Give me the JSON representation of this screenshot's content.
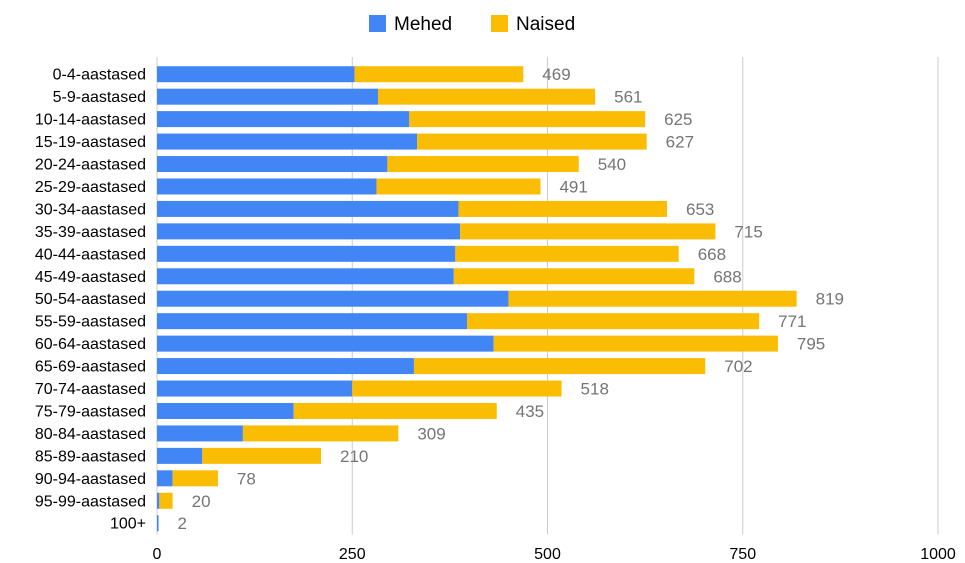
{
  "chart_data": {
    "type": "bar",
    "orientation": "horizontal",
    "stacked": true,
    "categories": [
      "0-4-aastased",
      "5-9-aastased",
      "10-14-aastased",
      "15-19-aastased",
      "20-24-aastased",
      "25-29-aastased",
      "30-34-aastased",
      "35-39-aastased",
      "40-44-aastased",
      "45-49-aastased",
      "50-54-aastased",
      "55-59-aastased",
      "60-64-aastased",
      "65-69-aastased",
      "70-74-aastased",
      "75-79-aastased",
      "80-84-aastased",
      "85-89-aastased",
      "90-94-aastased",
      "95-99-aastased",
      "100+"
    ],
    "series": [
      {
        "name": "Mehed",
        "color": "#4285f4",
        "values": [
          253,
          283,
          323,
          333,
          295,
          281,
          386,
          388,
          382,
          380,
          450,
          397,
          431,
          329,
          250,
          175,
          110,
          58,
          20,
          3,
          2
        ]
      },
      {
        "name": "Naised",
        "color": "#fbbc04",
        "values": [
          216,
          278,
          302,
          294,
          245,
          210,
          267,
          327,
          286,
          308,
          369,
          374,
          364,
          373,
          268,
          260,
          199,
          152,
          58,
          17,
          0
        ]
      }
    ],
    "totals": [
      469,
      561,
      625,
      627,
      540,
      491,
      653,
      715,
      668,
      688,
      819,
      771,
      795,
      702,
      518,
      435,
      309,
      210,
      78,
      20,
      2
    ],
    "xlim": [
      0,
      1000
    ],
    "xticks": [
      "0",
      "250",
      "500",
      "750",
      "1000"
    ],
    "legend_position": "top",
    "grid": true,
    "colors": {
      "grid": "#cccccc",
      "total_label": "#757575",
      "text": "#000000"
    }
  }
}
